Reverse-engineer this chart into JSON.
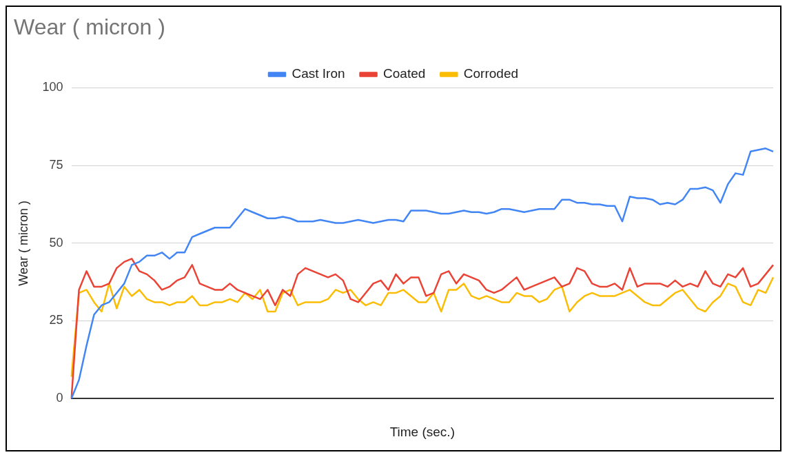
{
  "chart_data": {
    "type": "line",
    "title": "Wear ( micron )",
    "xlabel": "Time (sec.)",
    "ylabel": "Wear ( micron )",
    "categories": [
      null,
      null,
      null,
      null,
      null,
      null,
      null,
      null,
      null,
      null,
      null,
      null,
      null,
      null,
      null,
      null,
      null,
      null,
      null,
      null,
      null,
      null,
      null,
      null,
      null,
      null,
      null,
      null,
      null,
      null,
      null,
      null,
      null,
      null,
      null,
      null,
      null,
      null,
      null,
      null,
      null,
      null,
      null,
      null,
      null,
      null,
      null,
      null,
      null,
      null,
      null,
      null,
      null,
      null,
      null,
      null,
      null,
      null,
      null,
      null,
      null,
      null,
      null,
      null,
      null,
      null,
      null,
      null,
      null,
      null,
      null,
      null,
      null,
      null,
      null,
      null,
      null,
      null,
      null,
      null,
      null,
      null,
      null,
      null,
      null,
      null,
      null,
      null,
      null,
      null,
      null,
      null,
      null,
      null
    ],
    "series": [
      {
        "name": "Cast Iron",
        "color": "#4285f4",
        "values": [
          0,
          6,
          17,
          27,
          30,
          31,
          34,
          37,
          43,
          44,
          46,
          46,
          47,
          45,
          47,
          47,
          52,
          53,
          54,
          55,
          55,
          55,
          58,
          61,
          60,
          59,
          58,
          58,
          58.5,
          58,
          57,
          57,
          57,
          57.5,
          57,
          56.5,
          56.5,
          57,
          57.5,
          57,
          56.5,
          57,
          57.5,
          57.5,
          57,
          60.5,
          60.5,
          60.5,
          60,
          59.5,
          59.5,
          60,
          60.5,
          60,
          60,
          59.5,
          60,
          61,
          61,
          60.5,
          60,
          60.5,
          61,
          61,
          61,
          64,
          64,
          63,
          63,
          62.5,
          62.5,
          62,
          62,
          57,
          65,
          64.5,
          64.5,
          64,
          62.5,
          63,
          62.5,
          64,
          67.5,
          67.5,
          68,
          67,
          63,
          69,
          72.5,
          72,
          79.5,
          80,
          80.5,
          79.5
        ]
      },
      {
        "name": "Coated",
        "color": "#ea4335",
        "values": [
          0,
          35,
          41,
          36,
          36,
          37,
          42,
          44,
          45,
          41,
          40,
          38,
          35,
          36,
          38,
          39,
          43,
          37,
          36,
          35,
          35,
          37,
          35,
          34,
          33,
          32,
          35,
          30,
          35,
          33,
          40,
          42,
          41,
          40,
          39,
          40,
          38,
          32,
          31,
          34,
          37,
          38,
          35,
          40,
          37,
          39,
          39,
          33,
          34,
          40,
          41,
          37,
          40,
          39,
          38,
          35,
          34,
          35,
          37,
          39,
          35,
          36,
          37,
          38,
          39,
          36,
          37,
          42,
          41,
          37,
          36,
          36,
          37,
          35,
          42,
          36,
          37,
          37,
          37,
          36,
          38,
          36,
          37,
          36,
          41,
          37,
          36,
          40,
          39,
          42,
          36,
          37,
          40,
          43
        ]
      },
      {
        "name": "Corroded",
        "color": "#fbbc04",
        "values": [
          7,
          34,
          35,
          31,
          28,
          37,
          29,
          36,
          33,
          35,
          32,
          31,
          31,
          30,
          31,
          31,
          33,
          30,
          30,
          31,
          31,
          32,
          31,
          34,
          32,
          35,
          28,
          28,
          34,
          35,
          30,
          31,
          31,
          31,
          32,
          35,
          34,
          35,
          32,
          30,
          31,
          30,
          34,
          34,
          35,
          33,
          31,
          31,
          34,
          28,
          35,
          35,
          37,
          33,
          32,
          33,
          32,
          31,
          31,
          34,
          33,
          33,
          31,
          32,
          35,
          36,
          28,
          31,
          33,
          34,
          33,
          33,
          33,
          34,
          35,
          33,
          31,
          30,
          30,
          32,
          34,
          35,
          32,
          29,
          28,
          31,
          33,
          37,
          36,
          31,
          30,
          35,
          34,
          39
        ]
      }
    ],
    "ylim": [
      0,
      100
    ],
    "yticks": [
      0,
      25,
      50,
      75,
      100
    ],
    "grid": "y",
    "legend": "top",
    "marker": "none",
    "line_style": "solid"
  }
}
